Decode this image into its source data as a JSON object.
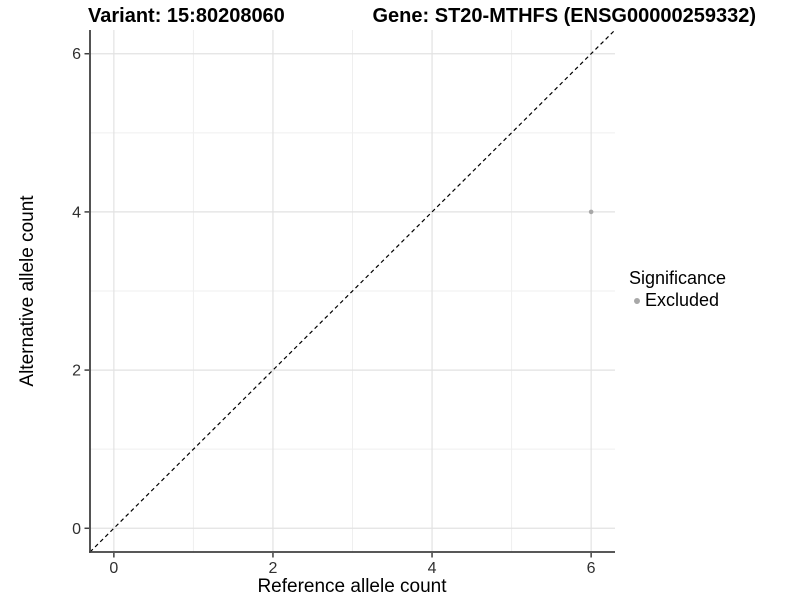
{
  "chart_data": {
    "type": "scatter",
    "title_left": "Variant: 15:80208060",
    "title_right": "Gene: ST20-MTHFS (ENSG00000259332)",
    "xlabel": "Reference allele count",
    "ylabel": "Alternative allele count",
    "xlim": [
      -0.3,
      6.3
    ],
    "ylim": [
      -0.3,
      6.3
    ],
    "x_major_ticks": [
      0,
      2,
      4,
      6
    ],
    "y_major_ticks": [
      0,
      2,
      4,
      6
    ],
    "x_minor_gridlines": [
      1,
      3,
      5
    ],
    "y_minor_gridlines": [
      1,
      3,
      5
    ],
    "grid": "major+minor",
    "legend": {
      "position": "right",
      "title": "Significance",
      "items": [
        {
          "label": "Excluded",
          "marker": "circle",
          "color": "#a8a8a8"
        }
      ]
    },
    "series": [
      {
        "name": "Excluded",
        "marker": "circle",
        "color": "#a8a8a8",
        "points": [
          {
            "x": 6,
            "y": 4
          }
        ]
      }
    ],
    "reference_line": {
      "kind": "identity y=x",
      "style": "dashed",
      "color": "#000000"
    },
    "styles": {
      "background": "#ffffff",
      "grid_major_color": "#e2e2e2",
      "grid_minor_color": "#efefef",
      "axis_line_color": "#404040",
      "tick_label_color": "#303030",
      "point_color": "#a8a8a8"
    }
  }
}
